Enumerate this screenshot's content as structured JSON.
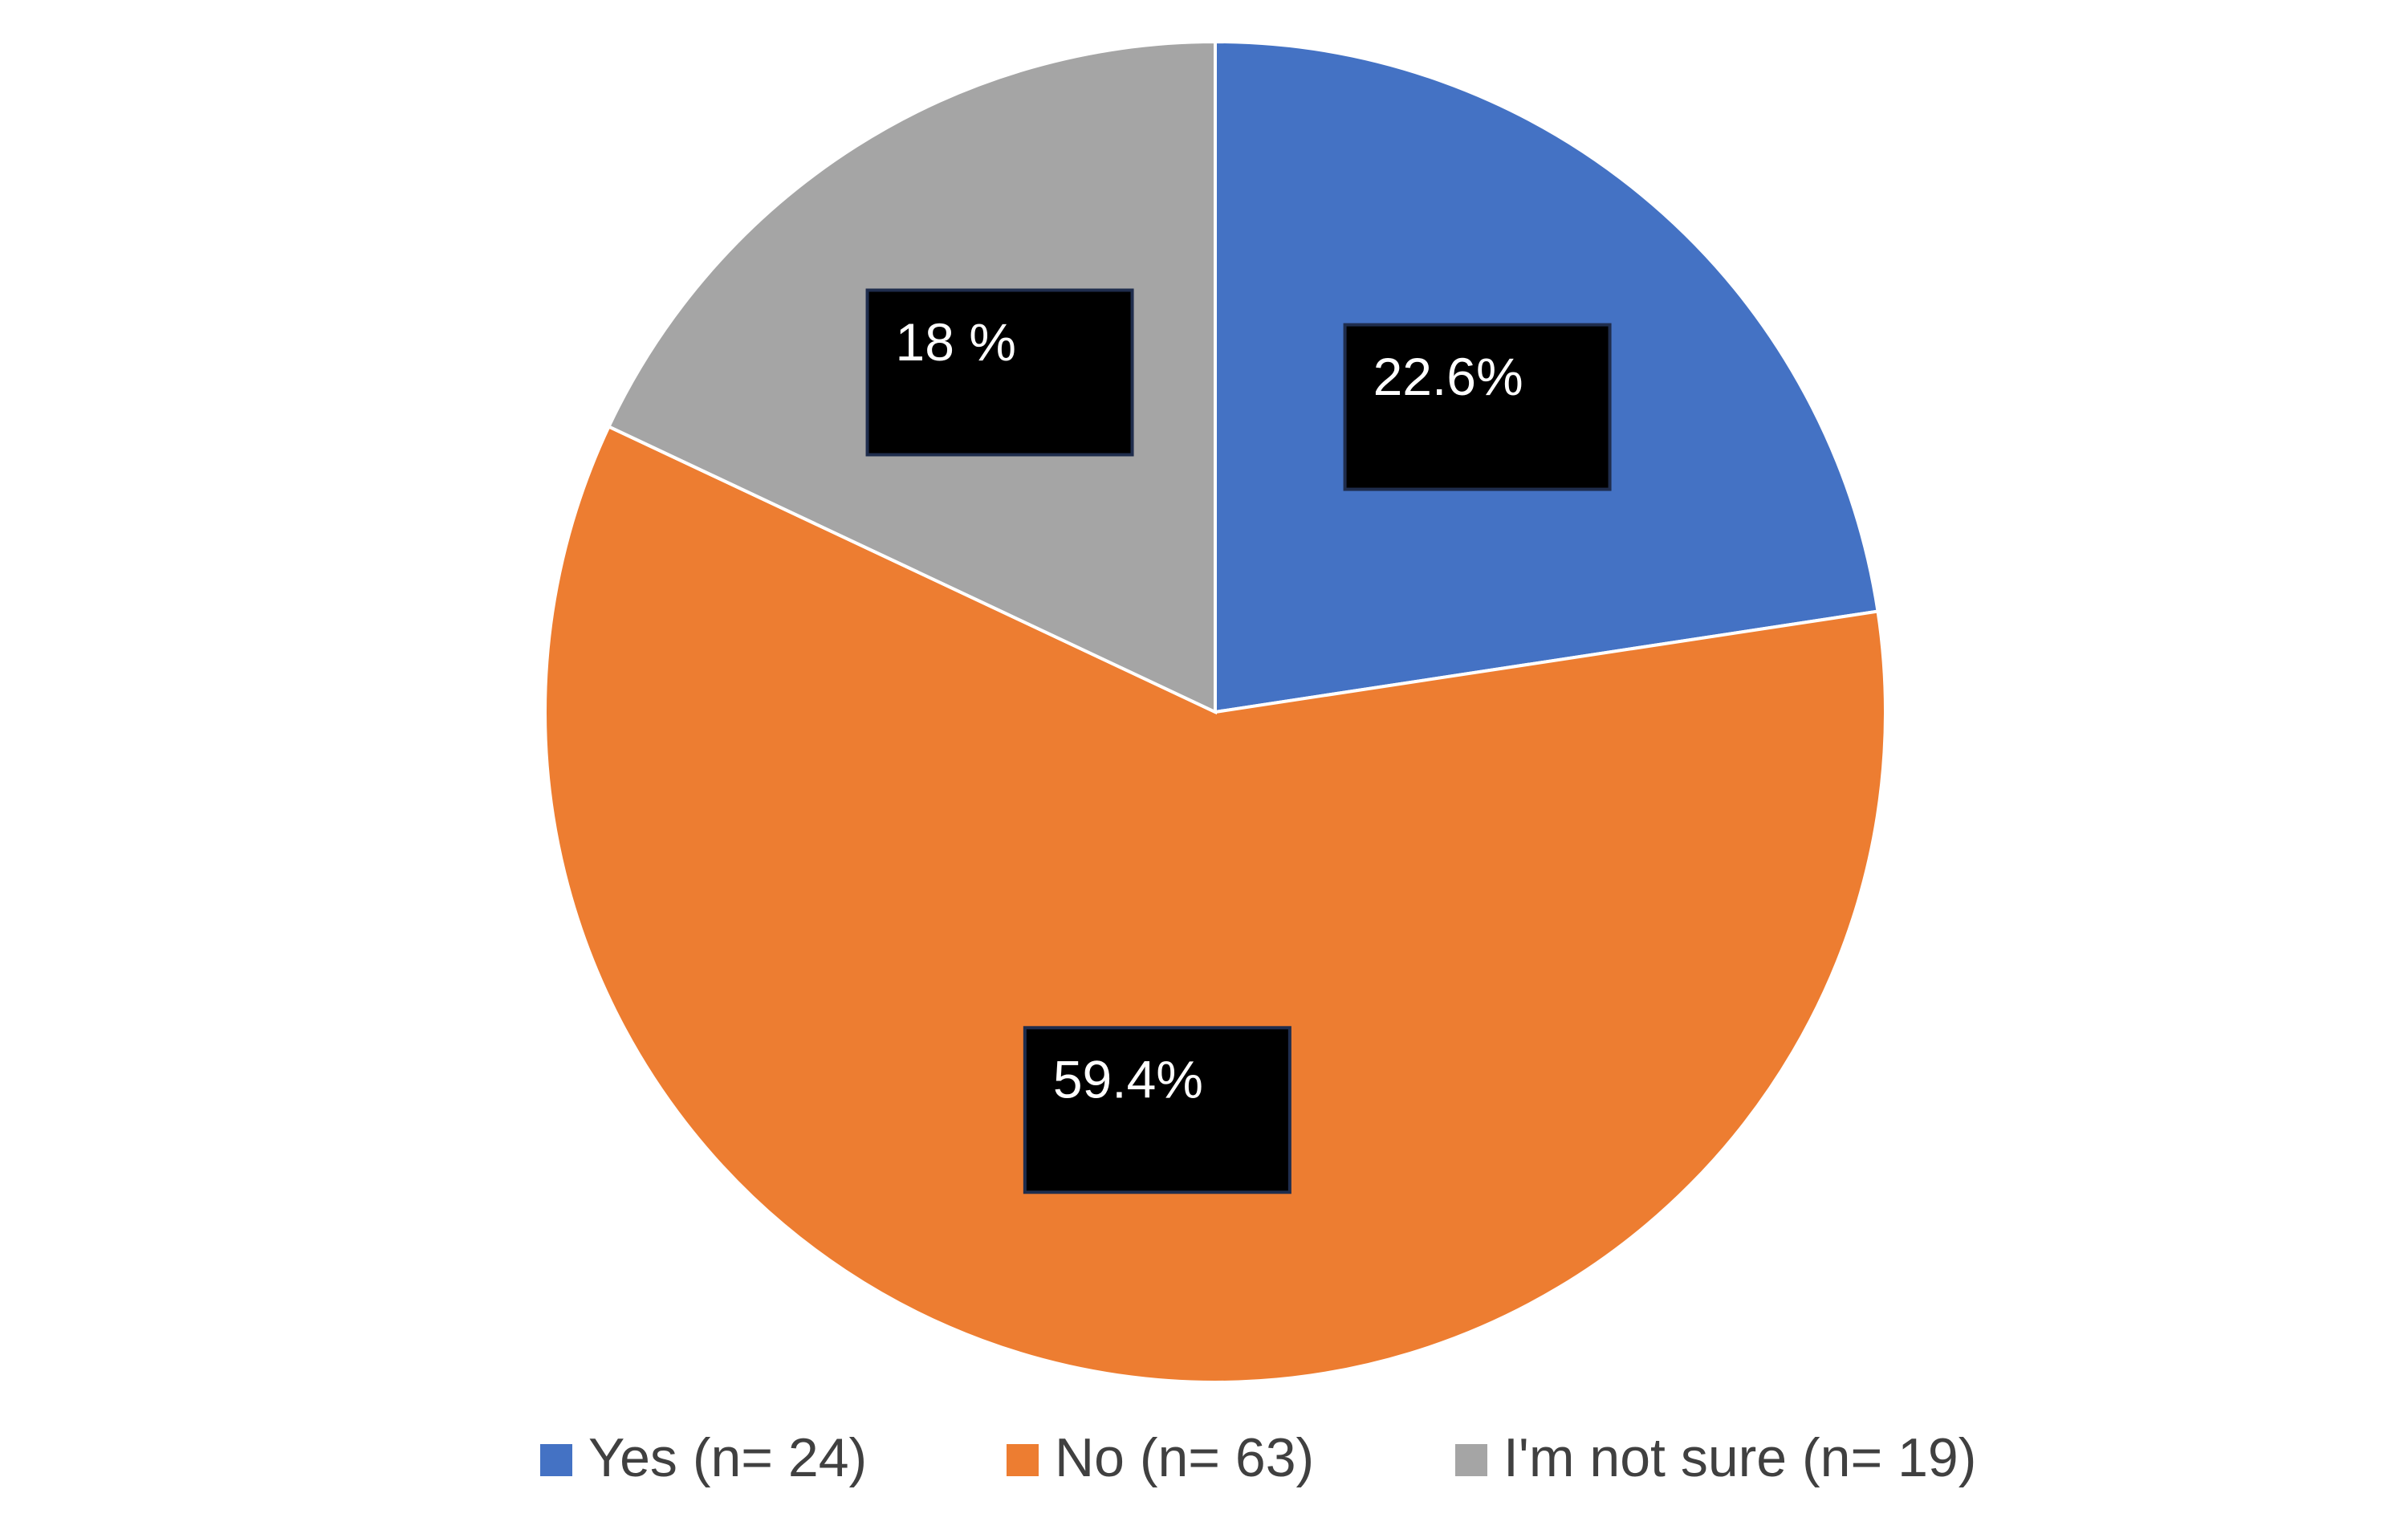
{
  "chart_data": {
    "type": "pie",
    "categories": [
      "Yes (n= 24)",
      "No (n= 63)",
      "I'm not sure (n= 19)"
    ],
    "values": [
      22.6,
      59.4,
      18
    ],
    "value_labels": [
      "22.6%",
      "59.4%",
      "18 %"
    ],
    "colors": [
      "#4472c4",
      "#ed7d31",
      "#a5a5a5"
    ],
    "legend": "bottom"
  }
}
